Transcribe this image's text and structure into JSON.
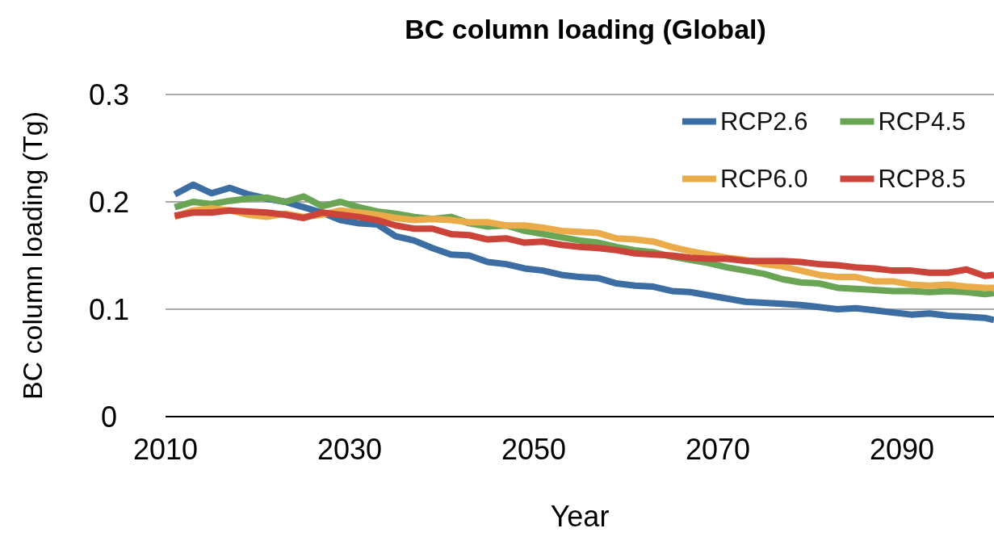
{
  "chart_data": {
    "type": "line",
    "title": "BC column loading (Global)",
    "xlabel": "Year",
    "ylabel": "BC column loading (Tg)",
    "x": [
      2011,
      2013,
      2015,
      2017,
      2019,
      2021,
      2023,
      2025,
      2027,
      2029,
      2031,
      2033,
      2035,
      2037,
      2039,
      2041,
      2043,
      2045,
      2047,
      2049,
      2051,
      2053,
      2055,
      2057,
      2059,
      2061,
      2063,
      2065,
      2067,
      2069,
      2071,
      2073,
      2075,
      2077,
      2079,
      2081,
      2083,
      2085,
      2087,
      2089,
      2091,
      2093,
      2095,
      2097,
      2099,
      2100
    ],
    "series": [
      {
        "name": "RCP2.6",
        "color": "#3d6ea3",
        "values": [
          0.207,
          0.216,
          0.208,
          0.213,
          0.207,
          0.203,
          0.2,
          0.195,
          0.19,
          0.183,
          0.18,
          0.179,
          0.168,
          0.164,
          0.157,
          0.151,
          0.15,
          0.144,
          0.142,
          0.138,
          0.136,
          0.132,
          0.13,
          0.129,
          0.124,
          0.122,
          0.121,
          0.117,
          0.116,
          0.113,
          0.11,
          0.107,
          0.106,
          0.105,
          0.104,
          0.102,
          0.1,
          0.101,
          0.099,
          0.097,
          0.095,
          0.096,
          0.094,
          0.093,
          0.092,
          0.09
        ]
      },
      {
        "name": "RCP4.5",
        "color": "#6aa556",
        "values": [
          0.195,
          0.2,
          0.198,
          0.201,
          0.203,
          0.204,
          0.2,
          0.205,
          0.196,
          0.2,
          0.195,
          0.191,
          0.189,
          0.186,
          0.184,
          0.186,
          0.18,
          0.177,
          0.178,
          0.173,
          0.17,
          0.167,
          0.164,
          0.162,
          0.158,
          0.155,
          0.153,
          0.149,
          0.146,
          0.143,
          0.139,
          0.136,
          0.133,
          0.128,
          0.125,
          0.124,
          0.12,
          0.119,
          0.118,
          0.117,
          0.117,
          0.116,
          0.117,
          0.116,
          0.114,
          0.115
        ]
      },
      {
        "name": "RCP6.0",
        "color": "#ebab48",
        "values": [
          0.186,
          0.192,
          0.194,
          0.192,
          0.188,
          0.186,
          0.189,
          0.186,
          0.188,
          0.192,
          0.19,
          0.188,
          0.185,
          0.183,
          0.184,
          0.183,
          0.181,
          0.181,
          0.178,
          0.178,
          0.176,
          0.173,
          0.172,
          0.171,
          0.166,
          0.165,
          0.163,
          0.158,
          0.154,
          0.151,
          0.148,
          0.146,
          0.142,
          0.14,
          0.136,
          0.132,
          0.13,
          0.13,
          0.126,
          0.126,
          0.123,
          0.122,
          0.123,
          0.121,
          0.12,
          0.12
        ]
      },
      {
        "name": "RCP8.5",
        "color": "#cc433a",
        "values": [
          0.187,
          0.19,
          0.19,
          0.192,
          0.191,
          0.19,
          0.188,
          0.185,
          0.19,
          0.188,
          0.186,
          0.183,
          0.178,
          0.175,
          0.175,
          0.17,
          0.169,
          0.165,
          0.166,
          0.162,
          0.163,
          0.16,
          0.158,
          0.157,
          0.155,
          0.152,
          0.151,
          0.15,
          0.148,
          0.147,
          0.147,
          0.145,
          0.145,
          0.145,
          0.144,
          0.142,
          0.141,
          0.139,
          0.138,
          0.136,
          0.136,
          0.134,
          0.134,
          0.137,
          0.131,
          0.132
        ]
      }
    ],
    "xlim": [
      2010,
      2100
    ],
    "xticks": [
      2010,
      2030,
      2050,
      2070,
      2090
    ],
    "ylim": [
      0,
      0.3
    ],
    "yticks": [
      0,
      0.1,
      0.2,
      0.3
    ],
    "grid": "y",
    "legend": "top right",
    "marker": "none",
    "line_style": "solid"
  }
}
